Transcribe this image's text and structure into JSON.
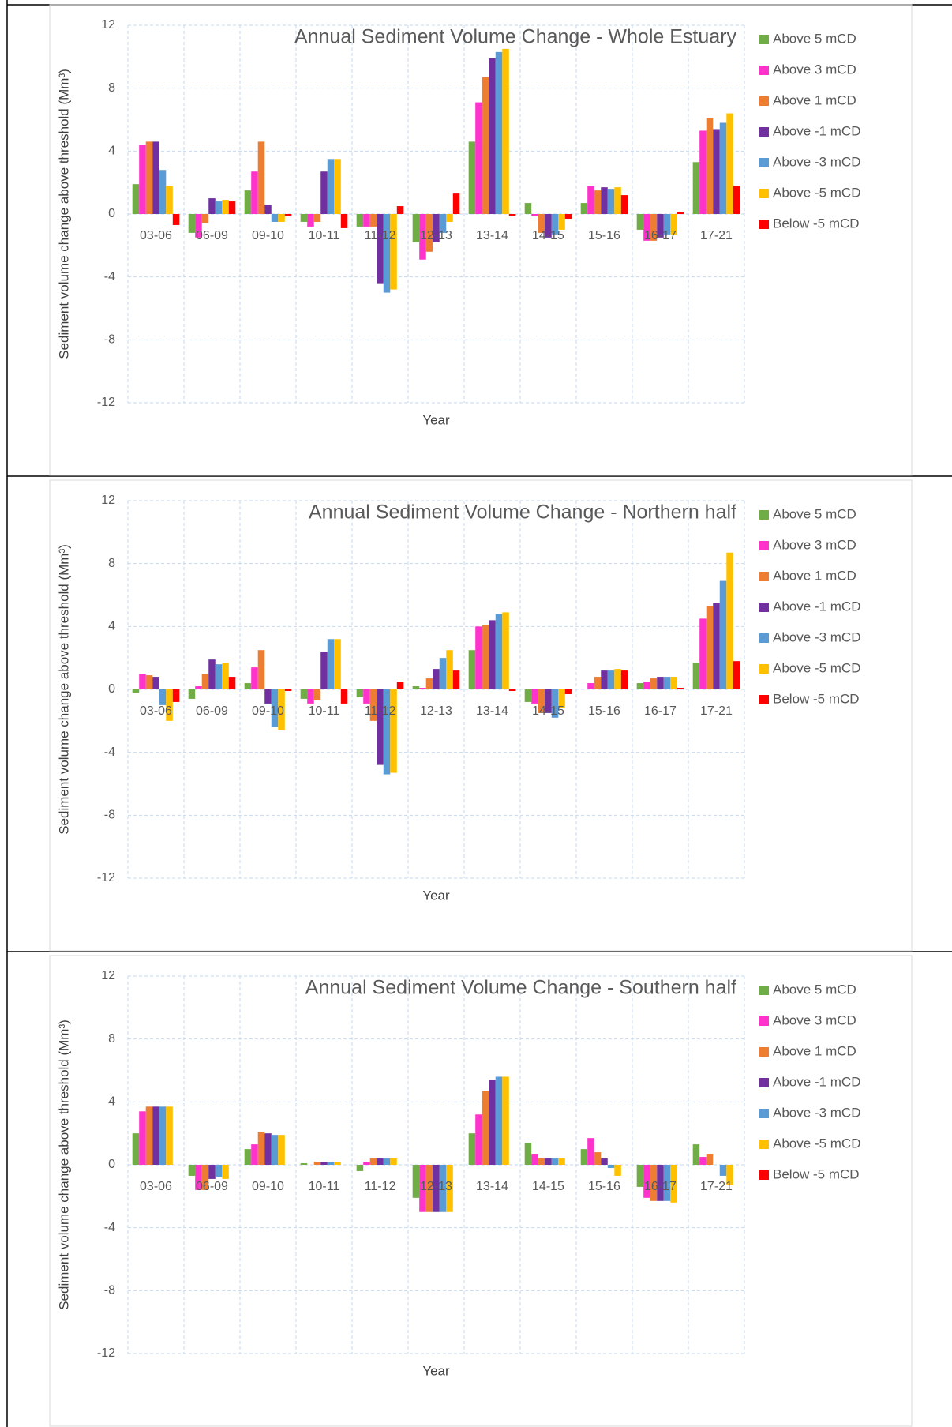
{
  "chart_data": [
    {
      "type": "bar",
      "title": "Annual Sediment Volume Change - Whole Estuary",
      "x_label": "Year",
      "y_label": "Sediment volume change above threshold (Mm³)",
      "categories": [
        "03-06",
        "06-09",
        "09-10",
        "10-11",
        "11-12",
        "12-13",
        "13-14",
        "14-15",
        "15-16",
        "16-17",
        "17-21"
      ],
      "ylim": [
        -12,
        12
      ],
      "yticks": [
        -12,
        -8,
        -4,
        0,
        4,
        8,
        12
      ],
      "grid": true,
      "legend": "right",
      "series": [
        {
          "name": "Above 5 mCD",
          "color": "#70ad47",
          "values": [
            1.9,
            -1.2,
            1.5,
            -0.5,
            -0.8,
            -1.8,
            4.6,
            0.7,
            0.7,
            -1.0,
            3.3
          ]
        },
        {
          "name": "Above 3 mCD",
          "color": "#ff33cc",
          "values": [
            4.4,
            -1.5,
            2.7,
            -0.8,
            -0.8,
            -2.9,
            7.1,
            -0.1,
            1.8,
            -1.7,
            5.3
          ]
        },
        {
          "name": "Above 1 mCD",
          "color": "#ed7d31",
          "values": [
            4.6,
            -0.6,
            4.6,
            -0.5,
            -0.8,
            -2.4,
            8.7,
            -1.2,
            1.5,
            -1.7,
            6.1
          ]
        },
        {
          "name": "Above -1 mCD",
          "color": "#7030a0",
          "values": [
            4.6,
            1.0,
            0.6,
            2.7,
            -4.4,
            -1.8,
            9.9,
            -1.5,
            1.7,
            -1.5,
            5.4
          ]
        },
        {
          "name": "Above -3 mCD",
          "color": "#5b9bd5",
          "values": [
            2.8,
            0.8,
            -0.5,
            3.5,
            -5.0,
            -1.2,
            10.3,
            -1.3,
            1.6,
            -1.3,
            5.8
          ]
        },
        {
          "name": "Above -5 mCD",
          "color": "#ffc000",
          "values": [
            1.8,
            0.9,
            -0.5,
            3.5,
            -4.8,
            -0.5,
            10.5,
            -1.0,
            1.7,
            -1.3,
            6.4
          ]
        },
        {
          "name": "Below -5 mCD",
          "color": "#ff0000",
          "values": [
            -0.7,
            0.8,
            -0.1,
            -0.9,
            0.5,
            1.3,
            -0.1,
            -0.3,
            1.2,
            0.1,
            1.8
          ]
        }
      ]
    },
    {
      "type": "bar",
      "title": "Annual Sediment Volume Change - Northern half",
      "x_label": "Year",
      "y_label": "Sediment volume change above threshold (Mm³)",
      "categories": [
        "03-06",
        "06-09",
        "09-10",
        "10-11",
        "11-12",
        "12-13",
        "13-14",
        "14-15",
        "15-16",
        "16-17",
        "17-21"
      ],
      "ylim": [
        -12,
        12
      ],
      "yticks": [
        -12,
        -8,
        -4,
        0,
        4,
        8,
        12
      ],
      "grid": true,
      "legend": "right",
      "series": [
        {
          "name": "Above 5 mCD",
          "color": "#70ad47",
          "values": [
            -0.2,
            -0.6,
            0.4,
            -0.6,
            -0.5,
            0.2,
            2.5,
            -0.8,
            0.0,
            0.4,
            1.7
          ]
        },
        {
          "name": "Above 3 mCD",
          "color": "#ff33cc",
          "values": [
            1.0,
            0.2,
            1.4,
            -0.9,
            -0.9,
            0.1,
            4.0,
            -0.9,
            0.4,
            0.5,
            4.5
          ]
        },
        {
          "name": "Above 1 mCD",
          "color": "#ed7d31",
          "values": [
            0.9,
            1.0,
            2.5,
            -0.7,
            -2.0,
            0.7,
            4.1,
            -1.5,
            0.8,
            0.7,
            5.3
          ]
        },
        {
          "name": "Above -1 mCD",
          "color": "#7030a0",
          "values": [
            0.8,
            1.9,
            -0.9,
            2.4,
            -4.8,
            1.3,
            4.4,
            -1.5,
            1.2,
            0.8,
            5.5
          ]
        },
        {
          "name": "Above -3 mCD",
          "color": "#5b9bd5",
          "values": [
            -1.0,
            1.6,
            -2.4,
            3.2,
            -5.4,
            2.0,
            4.8,
            -1.8,
            1.2,
            0.8,
            6.9
          ]
        },
        {
          "name": "Above -5 mCD",
          "color": "#ffc000",
          "values": [
            -2.0,
            1.7,
            -2.6,
            3.2,
            -5.3,
            2.5,
            4.9,
            -1.2,
            1.3,
            0.8,
            8.7
          ]
        },
        {
          "name": "Below -5 mCD",
          "color": "#ff0000",
          "values": [
            -0.8,
            0.8,
            -0.1,
            -0.9,
            0.5,
            1.2,
            -0.1,
            -0.3,
            1.2,
            0.1,
            1.8
          ]
        }
      ]
    },
    {
      "type": "bar",
      "title": "Annual Sediment Volume Change - Southern half",
      "x_label": "Year",
      "y_label": "Sediment volume change above threshold (Mm³)",
      "categories": [
        "03-06",
        "06-09",
        "09-10",
        "10-11",
        "11-12",
        "12-13",
        "13-14",
        "14-15",
        "15-16",
        "16-17",
        "17-21"
      ],
      "ylim": [
        -12,
        12
      ],
      "yticks": [
        -12,
        -8,
        -4,
        0,
        4,
        8,
        12
      ],
      "grid": true,
      "legend": "right",
      "series": [
        {
          "name": "Above 5 mCD",
          "color": "#70ad47",
          "values": [
            2.0,
            -0.7,
            1.0,
            0.1,
            -0.4,
            -2.1,
            2.0,
            1.4,
            1.0,
            -1.4,
            1.3
          ]
        },
        {
          "name": "Above 3 mCD",
          "color": "#ff33cc",
          "values": [
            3.4,
            -1.6,
            1.3,
            0.0,
            0.2,
            -3.0,
            3.2,
            0.7,
            1.7,
            -2.1,
            0.5
          ]
        },
        {
          "name": "Above 1 mCD",
          "color": "#ed7d31",
          "values": [
            3.7,
            -1.6,
            2.1,
            0.2,
            0.4,
            -3.0,
            4.7,
            0.4,
            0.8,
            -2.3,
            0.7
          ]
        },
        {
          "name": "Above -1 mCD",
          "color": "#7030a0",
          "values": [
            3.7,
            -0.9,
            2.0,
            0.2,
            0.4,
            -3.0,
            5.4,
            0.4,
            0.4,
            -2.3,
            0.0
          ]
        },
        {
          "name": "Above -3 mCD",
          "color": "#5b9bd5",
          "values": [
            3.7,
            -0.8,
            1.9,
            0.2,
            0.4,
            -3.0,
            5.6,
            0.4,
            -0.2,
            -2.3,
            -0.7
          ]
        },
        {
          "name": "Above -5 mCD",
          "color": "#ffc000",
          "values": [
            3.7,
            -0.9,
            1.9,
            0.2,
            0.4,
            -3.0,
            5.6,
            0.4,
            -0.7,
            -2.4,
            -1.3
          ]
        },
        {
          "name": "Below -5 mCD",
          "color": "#ff0000",
          "values": [
            0,
            0,
            0,
            0,
            0,
            0,
            0,
            0,
            0,
            0,
            0
          ]
        }
      ]
    }
  ]
}
